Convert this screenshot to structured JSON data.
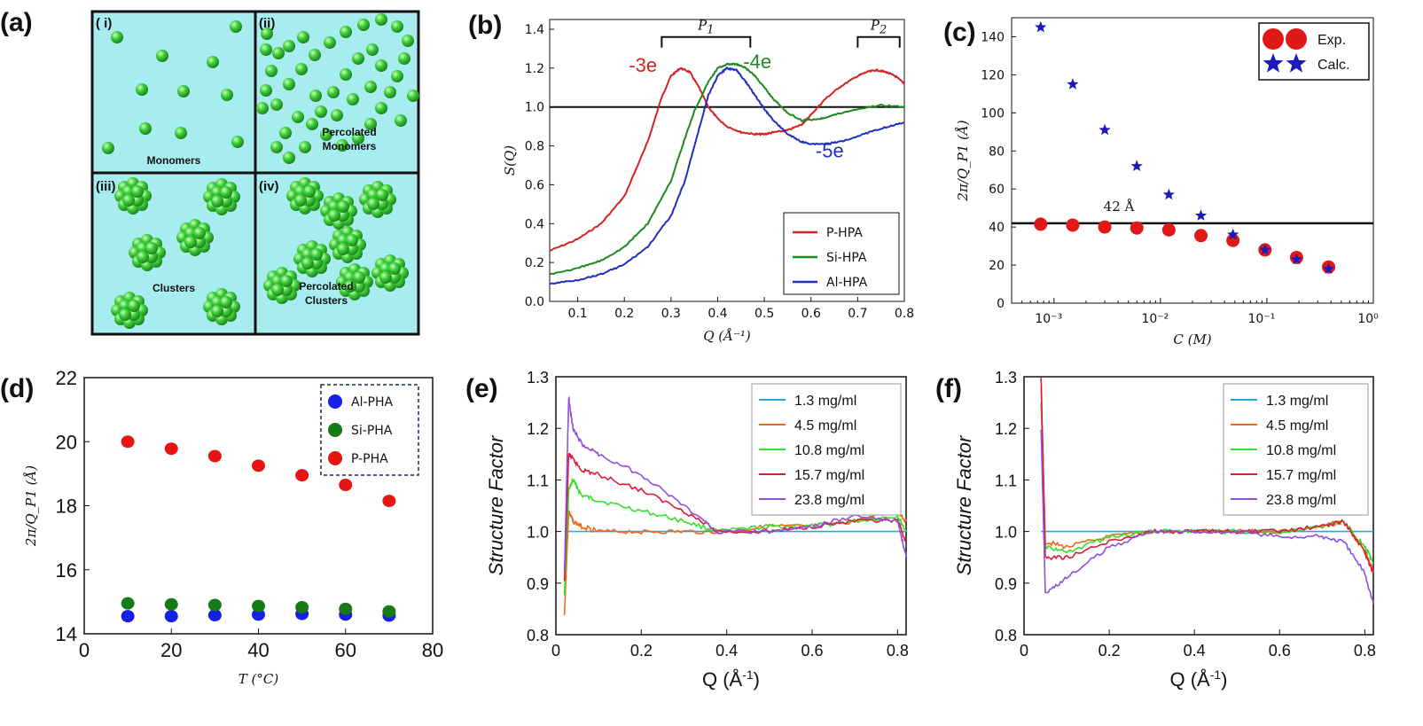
{
  "panel_labels": [
    "(a)",
    "(b)",
    "(c)",
    "(d)",
    "(e)",
    "(f)"
  ],
  "diagram_a": {
    "cells": [
      {
        "id": "i",
        "roman": "( i)",
        "caption": "Monomers"
      },
      {
        "id": "ii",
        "roman": "(ii)",
        "caption": "Percolated Monomers"
      },
      {
        "id": "iii",
        "roman": "(iii)",
        "caption": "Clusters"
      },
      {
        "id": "iv",
        "roman": "(iv)",
        "caption": "Percolated Clusters"
      }
    ],
    "colors": {
      "background": "#a7ecef",
      "sphere": "#33b233",
      "border": "#111111"
    }
  },
  "chart_data": [
    {
      "panel": "(b)",
      "type": "line",
      "xlabel": "Q (Å⁻¹)",
      "ylabel": "S(Q)",
      "xlim": [
        0.04,
        0.8
      ],
      "ylim": [
        0.0,
        1.45
      ],
      "xticks": [
        "0.1",
        "0.2",
        "0.3",
        "0.4",
        "0.5",
        "0.6",
        "0.7",
        "0.8"
      ],
      "yticks": [
        "0.0",
        "0.2",
        "0.4",
        "0.6",
        "0.8",
        "1.0",
        "1.2",
        "1.4"
      ],
      "reference_line": 1.0,
      "brackets": [
        {
          "label": "P1",
          "from": 0.28,
          "to": 0.47,
          "y": 1.36
        },
        {
          "label": "P2",
          "from": 0.7,
          "to": 0.79,
          "y": 1.36
        }
      ],
      "annotations": [
        {
          "text": "-3e",
          "x": 0.24,
          "y": 1.18,
          "color": "#d42020"
        },
        {
          "text": "-4e",
          "x": 0.485,
          "y": 1.2,
          "color": "#1c8a1c"
        },
        {
          "text": "-5e",
          "x": 0.64,
          "y": 0.74,
          "color": "#1f2fc2"
        }
      ],
      "legend": "bottom-right",
      "series": [
        {
          "name": "P-HPA",
          "color": "#d62222",
          "x": [
            0.04,
            0.1,
            0.15,
            0.2,
            0.25,
            0.28,
            0.3,
            0.32,
            0.34,
            0.36,
            0.38,
            0.4,
            0.42,
            0.45,
            0.48,
            0.5,
            0.52,
            0.55,
            0.58,
            0.6,
            0.63,
            0.66,
            0.7,
            0.72,
            0.74,
            0.76,
            0.78,
            0.8
          ],
          "y": [
            0.26,
            0.32,
            0.4,
            0.54,
            0.82,
            1.05,
            1.16,
            1.2,
            1.18,
            1.1,
            1.0,
            0.94,
            0.9,
            0.87,
            0.86,
            0.86,
            0.87,
            0.88,
            0.91,
            0.96,
            1.04,
            1.1,
            1.16,
            1.18,
            1.19,
            1.18,
            1.16,
            1.12
          ]
        },
        {
          "name": "Si-HPA",
          "color": "#1c8a1c",
          "x": [
            0.04,
            0.1,
            0.15,
            0.2,
            0.25,
            0.3,
            0.33,
            0.35,
            0.38,
            0.4,
            0.42,
            0.44,
            0.46,
            0.48,
            0.5,
            0.52,
            0.55,
            0.58,
            0.62,
            0.65,
            0.7,
            0.75,
            0.8
          ],
          "y": [
            0.14,
            0.17,
            0.21,
            0.28,
            0.4,
            0.62,
            0.84,
            0.98,
            1.13,
            1.2,
            1.22,
            1.22,
            1.2,
            1.16,
            1.1,
            1.04,
            0.97,
            0.93,
            0.94,
            0.96,
            0.99,
            1.01,
            1.0
          ]
        },
        {
          "name": "Al-HPA",
          "color": "#1f2fc2",
          "x": [
            0.04,
            0.1,
            0.15,
            0.2,
            0.25,
            0.3,
            0.33,
            0.35,
            0.38,
            0.4,
            0.42,
            0.44,
            0.46,
            0.48,
            0.5,
            0.52,
            0.55,
            0.58,
            0.6,
            0.63,
            0.66,
            0.7,
            0.75,
            0.8
          ],
          "y": [
            0.09,
            0.11,
            0.14,
            0.19,
            0.28,
            0.44,
            0.62,
            0.8,
            1.06,
            1.16,
            1.2,
            1.19,
            1.13,
            1.06,
            0.99,
            0.93,
            0.86,
            0.82,
            0.81,
            0.81,
            0.82,
            0.85,
            0.89,
            0.92
          ]
        }
      ]
    },
    {
      "panel": "(c)",
      "type": "scatter",
      "xlabel": "C (M)",
      "ylabel": "2π/Q_P1 (Å)",
      "xscale": "log",
      "xlim": [
        0.0004,
        1.0
      ],
      "ylim": [
        0,
        150
      ],
      "xticks": [
        "10⁻³",
        "10⁻²",
        "10⁻¹",
        "10⁰"
      ],
      "yticks": [
        "0",
        "20",
        "40",
        "60",
        "80",
        "100",
        "120",
        "140"
      ],
      "reference_line": 42,
      "reference_label": "42 Å",
      "legend": "top-right",
      "series": [
        {
          "name": "Exp.",
          "marker": "circle",
          "color": "#e01818",
          "x": [
            0.00075,
            0.0015,
            0.003,
            0.006,
            0.012,
            0.024,
            0.048,
            0.096,
            0.19,
            0.38
          ],
          "y": [
            41.5,
            41,
            40,
            39.5,
            38.5,
            35.5,
            33,
            28,
            24,
            19
          ]
        },
        {
          "name": "Calc.",
          "marker": "star",
          "color": "#1c1ab8",
          "x": [
            0.00075,
            0.0015,
            0.003,
            0.006,
            0.012,
            0.024,
            0.048,
            0.096,
            0.19,
            0.38
          ],
          "y": [
            145,
            115,
            91,
            72,
            57,
            46,
            36,
            28,
            23,
            18
          ]
        }
      ]
    },
    {
      "panel": "(d)",
      "type": "scatter",
      "xlabel": "T (°C)",
      "ylabel": "2π/Q_P1 (Å)",
      "xlim": [
        0,
        80
      ],
      "ylim": [
        14,
        22
      ],
      "xticks": [
        "0",
        "20",
        "40",
        "60",
        "80"
      ],
      "yticks": [
        "14",
        "16",
        "18",
        "20",
        "22"
      ],
      "legend": "top-right",
      "series": [
        {
          "name": "Al-PHA",
          "color": "#1520e6",
          "x": [
            10,
            20,
            30,
            40,
            50,
            60,
            70
          ],
          "y": [
            14.55,
            14.55,
            14.58,
            14.6,
            14.62,
            14.6,
            14.57
          ]
        },
        {
          "name": "Si-PHA",
          "color": "#167a16",
          "x": [
            10,
            20,
            30,
            40,
            50,
            60,
            70
          ],
          "y": [
            14.95,
            14.92,
            14.9,
            14.87,
            14.83,
            14.78,
            14.7
          ]
        },
        {
          "name": "P-PHA",
          "color": "#e81414",
          "x": [
            10,
            20,
            30,
            40,
            50,
            60,
            70
          ],
          "y": [
            20.0,
            19.78,
            19.55,
            19.25,
            18.95,
            18.65,
            18.15
          ]
        }
      ]
    },
    {
      "panel": "(e)",
      "type": "line",
      "xlabel": "Q (Å-1)",
      "ylabel": "Structure Factor",
      "xlim": [
        0,
        0.82
      ],
      "ylim": [
        0.8,
        1.3
      ],
      "xticks": [
        "0",
        "0.2",
        "0.4",
        "0.6",
        "0.8"
      ],
      "yticks": [
        "0.8",
        "0.9",
        "1.0",
        "1.1",
        "1.2",
        "1.3"
      ],
      "legend": "top-right",
      "series": [
        {
          "name": "1.3 mg/ml",
          "color": "#2aa7d6",
          "x": [
            0.02,
            0.82
          ],
          "y": [
            1.0,
            1.0
          ]
        },
        {
          "name": "4.5 mg/ml",
          "color": "#ef6a1a",
          "x": [
            0.02,
            0.03,
            0.04,
            0.06,
            0.1,
            0.2,
            0.3,
            0.4,
            0.5,
            0.6,
            0.7,
            0.8,
            0.82
          ],
          "y": [
            0.84,
            1.04,
            1.02,
            1.01,
            1.0,
            1.0,
            1.0,
            1.0,
            1.01,
            1.01,
            1.02,
            1.04,
            1.02
          ]
        },
        {
          "name": "10.8 mg/ml",
          "color": "#33e02a",
          "x": [
            0.02,
            0.03,
            0.04,
            0.06,
            0.1,
            0.2,
            0.3,
            0.38,
            0.5,
            0.6,
            0.7,
            0.8,
            0.82
          ],
          "y": [
            0.88,
            1.08,
            1.1,
            1.07,
            1.06,
            1.04,
            1.02,
            1.0,
            1.01,
            1.01,
            1.02,
            1.03,
            1.0
          ]
        },
        {
          "name": "15.7 mg/ml",
          "color": "#e01a3a",
          "x": [
            0.02,
            0.03,
            0.04,
            0.06,
            0.1,
            0.2,
            0.3,
            0.38,
            0.5,
            0.6,
            0.7,
            0.8,
            0.82
          ],
          "y": [
            0.9,
            1.15,
            1.14,
            1.12,
            1.11,
            1.08,
            1.04,
            1.0,
            1.0,
            1.01,
            1.02,
            1.02,
            0.98
          ]
        },
        {
          "name": "23.8 mg/ml",
          "color": "#8f4fd9",
          "x": [
            0.02,
            0.03,
            0.04,
            0.06,
            0.1,
            0.2,
            0.3,
            0.38,
            0.5,
            0.6,
            0.7,
            0.8,
            0.82
          ],
          "y": [
            0.92,
            1.26,
            1.2,
            1.17,
            1.15,
            1.11,
            1.05,
            1.0,
            1.0,
            1.01,
            1.03,
            1.02,
            0.95
          ]
        }
      ]
    },
    {
      "panel": "(f)",
      "type": "line",
      "xlabel": "Q (Å-1)",
      "ylabel": "Structure Factor",
      "xlim": [
        0,
        0.82
      ],
      "ylim": [
        0.8,
        1.3
      ],
      "xticks": [
        "0",
        "0.2",
        "0.4",
        "0.6",
        "0.8"
      ],
      "yticks": [
        "0.8",
        "0.9",
        "1.0",
        "1.1",
        "1.2",
        "1.3"
      ],
      "legend": "top-right",
      "series": [
        {
          "name": "1.3 mg/ml",
          "color": "#2aa7d6",
          "x": [
            0.04,
            0.82
          ],
          "y": [
            1.0,
            1.0
          ]
        },
        {
          "name": "4.5 mg/ml",
          "color": "#ef6a1a",
          "x": [
            0.04,
            0.05,
            0.1,
            0.2,
            0.3,
            0.4,
            0.5,
            0.6,
            0.7,
            0.75,
            0.8,
            0.82
          ],
          "y": [
            1.28,
            0.98,
            0.97,
            0.99,
            1.0,
            1.0,
            1.0,
            1.0,
            1.01,
            1.02,
            0.96,
            0.92
          ]
        },
        {
          "name": "10.8 mg/ml",
          "color": "#33e02a",
          "x": [
            0.04,
            0.05,
            0.1,
            0.2,
            0.3,
            0.4,
            0.5,
            0.6,
            0.7,
            0.75,
            0.8,
            0.82
          ],
          "y": [
            1.25,
            0.97,
            0.96,
            0.99,
            1.0,
            1.0,
            1.0,
            1.0,
            1.01,
            1.02,
            0.97,
            0.94
          ]
        },
        {
          "name": "15.7 mg/ml",
          "color": "#e01a3a",
          "x": [
            0.04,
            0.05,
            0.1,
            0.2,
            0.3,
            0.4,
            0.5,
            0.6,
            0.7,
            0.75,
            0.8,
            0.82
          ],
          "y": [
            1.3,
            0.95,
            0.95,
            0.98,
            1.0,
            1.0,
            1.0,
            1.0,
            1.01,
            1.02,
            0.96,
            0.92
          ]
        },
        {
          "name": "23.8 mg/ml",
          "color": "#8f4fd9",
          "x": [
            0.04,
            0.05,
            0.1,
            0.2,
            0.3,
            0.4,
            0.5,
            0.6,
            0.7,
            0.75,
            0.8,
            0.82
          ],
          "y": [
            1.2,
            0.88,
            0.91,
            0.97,
            1.0,
            1.0,
            1.0,
            0.99,
            0.99,
            0.98,
            0.92,
            0.86
          ]
        }
      ]
    }
  ]
}
